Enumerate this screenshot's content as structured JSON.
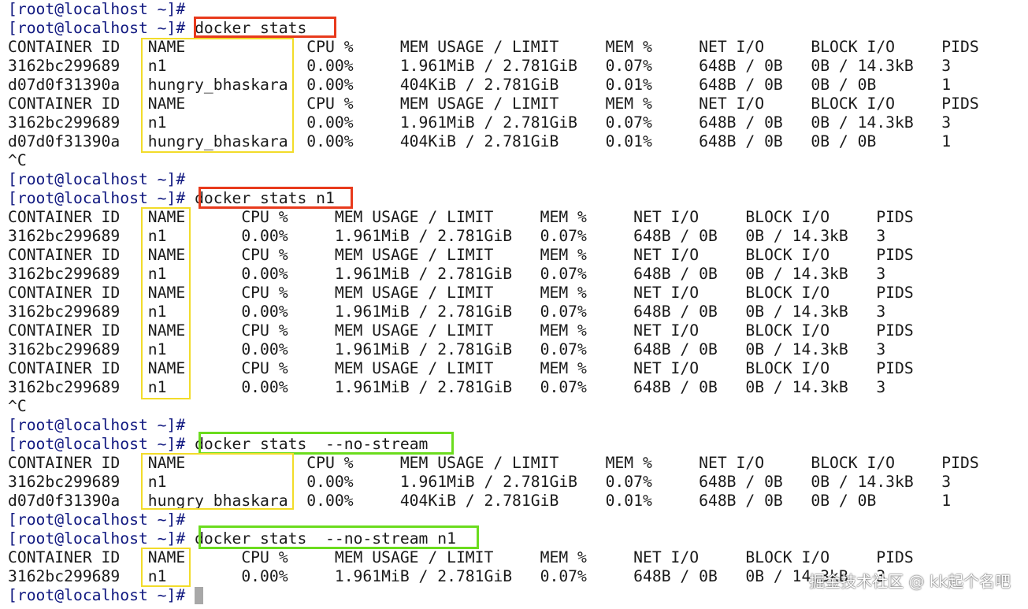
{
  "terminal": {
    "prompt": "[root@localhost ~]#",
    "lines": [
      {
        "type": "prompt",
        "cmd": ""
      },
      {
        "type": "prompt",
        "cmd": " docker stats"
      },
      {
        "type": "out",
        "text": "CONTAINER ID   NAME             CPU %     MEM USAGE / LIMIT     MEM %     NET I/O     BLOCK I/O     PIDS"
      },
      {
        "type": "out",
        "text": "3162bc299689   n1               0.00%     1.961MiB / 2.781GiB   0.07%     648B / 0B   0B / 14.3kB   3"
      },
      {
        "type": "out",
        "text": "d07d0f31390a   hungry_bhaskara  0.00%     404KiB / 2.781GiB     0.01%     648B / 0B   0B / 0B       1"
      },
      {
        "type": "out",
        "text": "CONTAINER ID   NAME             CPU %     MEM USAGE / LIMIT     MEM %     NET I/O     BLOCK I/O     PIDS"
      },
      {
        "type": "out",
        "text": "3162bc299689   n1               0.00%     1.961MiB / 2.781GiB   0.07%     648B / 0B   0B / 14.3kB   3"
      },
      {
        "type": "out",
        "text": "d07d0f31390a   hungry_bhaskara  0.00%     404KiB / 2.781GiB     0.01%     648B / 0B   0B / 0B       1"
      },
      {
        "type": "out",
        "text": "^C"
      },
      {
        "type": "prompt",
        "cmd": ""
      },
      {
        "type": "prompt",
        "cmd": " docker stats n1"
      },
      {
        "type": "out",
        "text": "CONTAINER ID   NAME      CPU %     MEM USAGE / LIMIT     MEM %     NET I/O     BLOCK I/O     PIDS"
      },
      {
        "type": "out",
        "text": "3162bc299689   n1        0.00%     1.961MiB / 2.781GiB   0.07%     648B / 0B   0B / 14.3kB   3"
      },
      {
        "type": "out",
        "text": "CONTAINER ID   NAME      CPU %     MEM USAGE / LIMIT     MEM %     NET I/O     BLOCK I/O     PIDS"
      },
      {
        "type": "out",
        "text": "3162bc299689   n1        0.00%     1.961MiB / 2.781GiB   0.07%     648B / 0B   0B / 14.3kB   3"
      },
      {
        "type": "out",
        "text": "CONTAINER ID   NAME      CPU %     MEM USAGE / LIMIT     MEM %     NET I/O     BLOCK I/O     PIDS"
      },
      {
        "type": "out",
        "text": "3162bc299689   n1        0.00%     1.961MiB / 2.781GiB   0.07%     648B / 0B   0B / 14.3kB   3"
      },
      {
        "type": "out",
        "text": "CONTAINER ID   NAME      CPU %     MEM USAGE / LIMIT     MEM %     NET I/O     BLOCK I/O     PIDS"
      },
      {
        "type": "out",
        "text": "3162bc299689   n1        0.00%     1.961MiB / 2.781GiB   0.07%     648B / 0B   0B / 14.3kB   3"
      },
      {
        "type": "out",
        "text": "CONTAINER ID   NAME      CPU %     MEM USAGE / LIMIT     MEM %     NET I/O     BLOCK I/O     PIDS"
      },
      {
        "type": "out",
        "text": "3162bc299689   n1        0.00%     1.961MiB / 2.781GiB   0.07%     648B / 0B   0B / 14.3kB   3"
      },
      {
        "type": "out",
        "text": "^C"
      },
      {
        "type": "prompt",
        "cmd": ""
      },
      {
        "type": "prompt",
        "cmd": " docker stats  --no-stream"
      },
      {
        "type": "out",
        "text": "CONTAINER ID   NAME             CPU %     MEM USAGE / LIMIT     MEM %     NET I/O     BLOCK I/O     PIDS"
      },
      {
        "type": "out",
        "text": "3162bc299689   n1               0.00%     1.961MiB / 2.781GiB   0.07%     648B / 0B   0B / 14.3kB   3"
      },
      {
        "type": "out",
        "text": "d07d0f31390a   hungry_bhaskara  0.00%     404KiB / 2.781GiB     0.01%     648B / 0B   0B / 0B       1"
      },
      {
        "type": "prompt",
        "cmd": ""
      },
      {
        "type": "prompt",
        "cmd": " docker stats  --no-stream n1"
      },
      {
        "type": "out",
        "text": "CONTAINER ID   NAME      CPU %     MEM USAGE / LIMIT     MEM %     NET I/O     BLOCK I/O     PIDS"
      },
      {
        "type": "out",
        "text": "3162bc299689   n1        0.00%     1.961MiB / 2.781GiB   0.07%     648B / 0B   0B / 14.3kB   3"
      },
      {
        "type": "cursor",
        "cmd": " "
      }
    ]
  },
  "highlights": {
    "colors": {
      "red": "#e83a1c",
      "green": "#6bdc1e",
      "yellow": "#f2dc2a"
    }
  },
  "watermark": {
    "text": "掘金技术社区 @ kk起个名吧"
  }
}
